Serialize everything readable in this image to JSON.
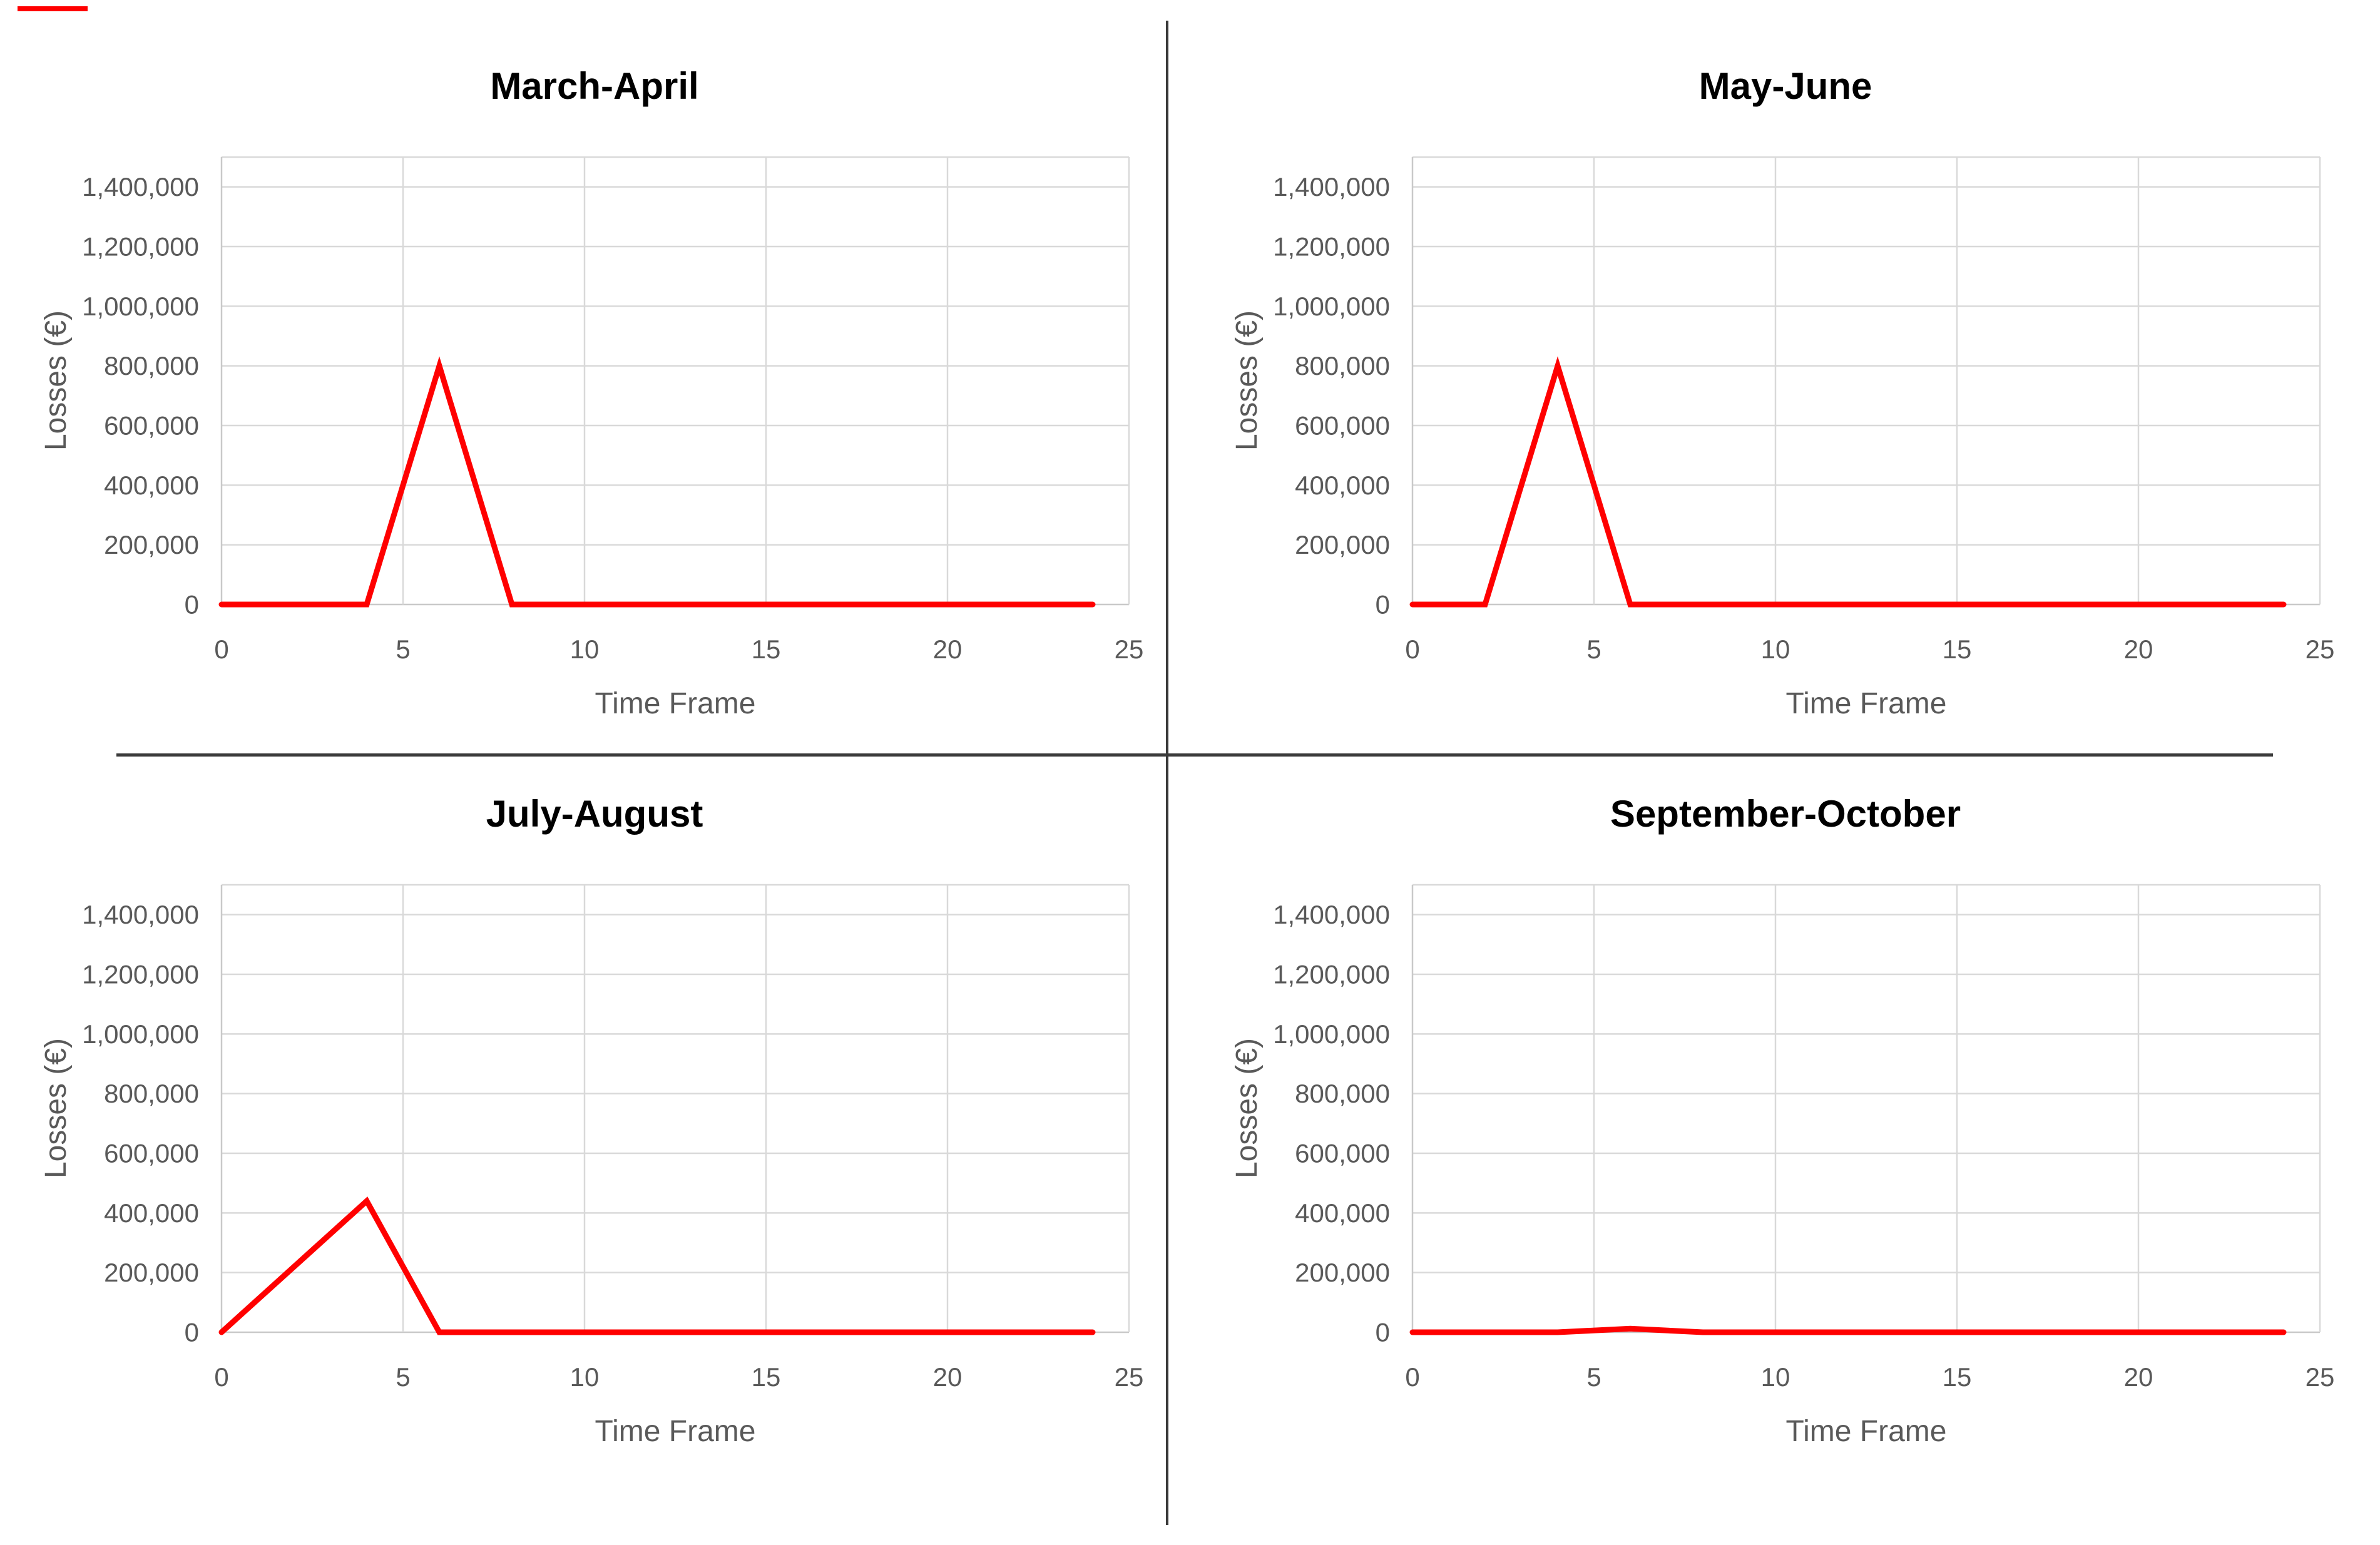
{
  "page": {
    "background": "#ffffff",
    "divider_color": "#3a3a3a",
    "artifact_dash_color": "#ff0000"
  },
  "chart_data": [
    {
      "type": "line",
      "title": "March-April",
      "xlabel": "Time Frame",
      "ylabel": "Losses (€)",
      "x": [
        0,
        4,
        6,
        8,
        24
      ],
      "y": [
        0,
        0,
        800000,
        0,
        0
      ],
      "xticks": [
        0,
        5,
        10,
        15,
        20,
        25
      ],
      "xtick_labels": [
        "0",
        "5",
        "10",
        "15",
        "20",
        "25"
      ],
      "yticks": [
        0,
        200000,
        400000,
        600000,
        800000,
        1000000,
        1200000,
        1400000
      ],
      "ytick_labels": [
        "0",
        "200,000",
        "400,000",
        "600,000",
        "800,000",
        "1,000,000",
        "1,200,000",
        "1,400,000"
      ],
      "xlim": [
        0,
        25
      ],
      "ylim": [
        0,
        1500000
      ],
      "line_color": "#ff0000",
      "grid": true,
      "legend": false
    },
    {
      "type": "line",
      "title": "May-June",
      "xlabel": "Time Frame",
      "ylabel": "Losses (€)",
      "x": [
        0,
        2,
        4,
        6,
        24
      ],
      "y": [
        0,
        0,
        800000,
        0,
        0
      ],
      "xticks": [
        0,
        5,
        10,
        15,
        20,
        25
      ],
      "xtick_labels": [
        "0",
        "5",
        "10",
        "15",
        "20",
        "25"
      ],
      "yticks": [
        0,
        200000,
        400000,
        600000,
        800000,
        1000000,
        1200000,
        1400000
      ],
      "ytick_labels": [
        "0",
        "200,000",
        "400,000",
        "600,000",
        "800,000",
        "1,000,000",
        "1,200,000",
        "1,400,000"
      ],
      "xlim": [
        0,
        25
      ],
      "ylim": [
        0,
        1500000
      ],
      "line_color": "#ff0000",
      "grid": true,
      "legend": false
    },
    {
      "type": "line",
      "title": "July-August",
      "xlabel": "Time Frame",
      "ylabel": "Losses (€)",
      "x": [
        0,
        4,
        6,
        24
      ],
      "y": [
        0,
        440000,
        0,
        0
      ],
      "xticks": [
        0,
        5,
        10,
        15,
        20,
        25
      ],
      "xtick_labels": [
        "0",
        "5",
        "10",
        "15",
        "20",
        "25"
      ],
      "yticks": [
        0,
        200000,
        400000,
        600000,
        800000,
        1000000,
        1200000,
        1400000
      ],
      "ytick_labels": [
        "0",
        "200,000",
        "400,000",
        "600,000",
        "800,000",
        "1,000,000",
        "1,200,000",
        "1,400,000"
      ],
      "xlim": [
        0,
        25
      ],
      "ylim": [
        0,
        1500000
      ],
      "line_color": "#ff0000",
      "grid": true,
      "legend": false
    },
    {
      "type": "line",
      "title": "September-October",
      "xlabel": "Time Frame",
      "ylabel": "Losses (€)",
      "x": [
        0,
        4,
        6,
        8,
        24
      ],
      "y": [
        0,
        0,
        12000,
        0,
        0
      ],
      "xticks": [
        0,
        5,
        10,
        15,
        20,
        25
      ],
      "xtick_labels": [
        "0",
        "5",
        "10",
        "15",
        "20",
        "25"
      ],
      "yticks": [
        0,
        200000,
        400000,
        600000,
        800000,
        1000000,
        1200000,
        1400000
      ],
      "ytick_labels": [
        "0",
        "200,000",
        "400,000",
        "600,000",
        "800,000",
        "1,000,000",
        "1,200,000",
        "1,400,000"
      ],
      "xlim": [
        0,
        25
      ],
      "ylim": [
        0,
        1500000
      ],
      "line_color": "#ff0000",
      "grid": true,
      "legend": false
    }
  ]
}
